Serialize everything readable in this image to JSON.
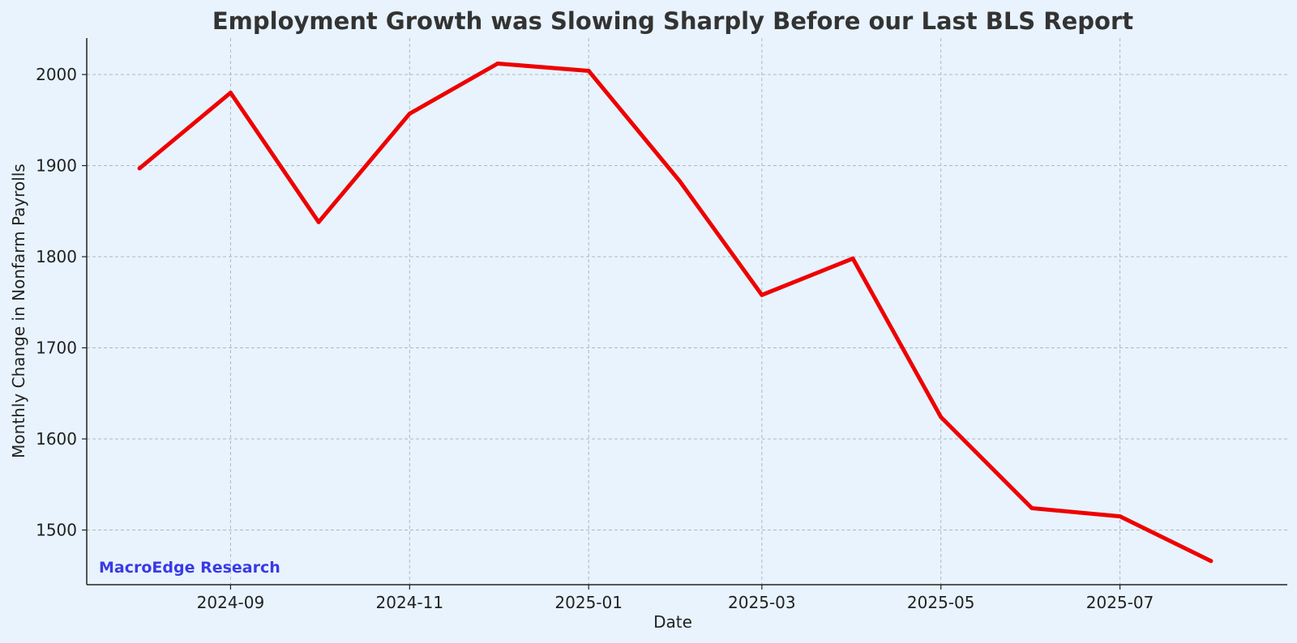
{
  "chart_data": {
    "type": "line",
    "title": "Employment Growth was Slowing Sharply Before our Last BLS Report",
    "xlabel": "Date",
    "ylabel": "Monthly Change in Nonfarm Payrolls",
    "x": [
      "2024-08",
      "2024-09",
      "2024-10",
      "2024-11",
      "2024-12",
      "2025-01",
      "2025-02",
      "2025-03",
      "2025-04",
      "2025-05",
      "2025-06",
      "2025-07",
      "2025-08"
    ],
    "series": [
      {
        "values": [
          1897,
          1980,
          1838,
          1957,
          2012,
          2004,
          1883,
          1758,
          1798,
          1624,
          1524,
          1515,
          1466
        ],
        "color": "#ee0000"
      }
    ],
    "xticks": [
      "2024-09",
      "2024-11",
      "2025-01",
      "2025-03",
      "2025-05",
      "2025-07"
    ],
    "yticks": [
      1500,
      1600,
      1700,
      1800,
      1900,
      2000
    ],
    "ylim": [
      1440,
      2040
    ],
    "xlim": [
      "2024-07-14",
      "2025-08-27"
    ],
    "grid": true,
    "watermark": "MacroEdge Research",
    "colors": {
      "background": "#e8f3fd",
      "line": "#ee0000",
      "watermark": "#3a3ae6",
      "title": "#333333",
      "grid": "#b0b8c0"
    }
  }
}
